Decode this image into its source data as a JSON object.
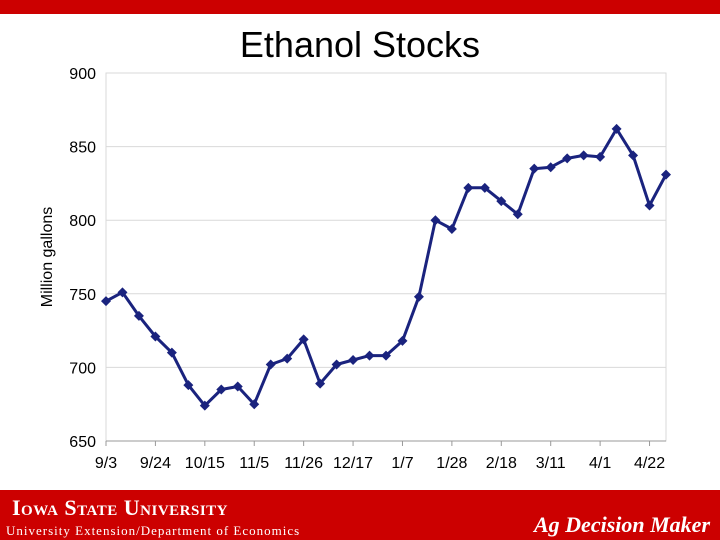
{
  "colors": {
    "brand_red": "#cc0000",
    "series_line": "#1a237e",
    "gridline": "#d9d9d9",
    "axis": "#999999"
  },
  "footer": {
    "university": "Iowa State University",
    "department": "University Extension/Department of Economics",
    "brand": "Ag Decision Maker"
  },
  "chart_data": {
    "type": "line",
    "title": "Ethanol Stocks",
    "xlabel": "",
    "ylabel": "Million gallons",
    "ylim": [
      650,
      900
    ],
    "yticks": [
      650,
      700,
      750,
      800,
      850,
      900
    ],
    "xtick_labels": [
      "9/3",
      "9/24",
      "10/15",
      "11/5",
      "11/26",
      "12/17",
      "1/7",
      "1/28",
      "2/18",
      "3/11",
      "4/1",
      "4/22"
    ],
    "grid": true,
    "legend": "none",
    "series": [
      {
        "values": [
          745,
          751,
          735,
          721,
          710,
          688,
          674,
          685,
          687,
          675,
          702,
          706,
          719,
          689,
          702,
          705,
          708,
          708,
          718,
          748,
          800,
          794,
          822,
          822,
          813,
          804,
          835,
          836,
          842,
          844,
          843,
          862,
          844,
          810,
          831
        ]
      }
    ]
  }
}
